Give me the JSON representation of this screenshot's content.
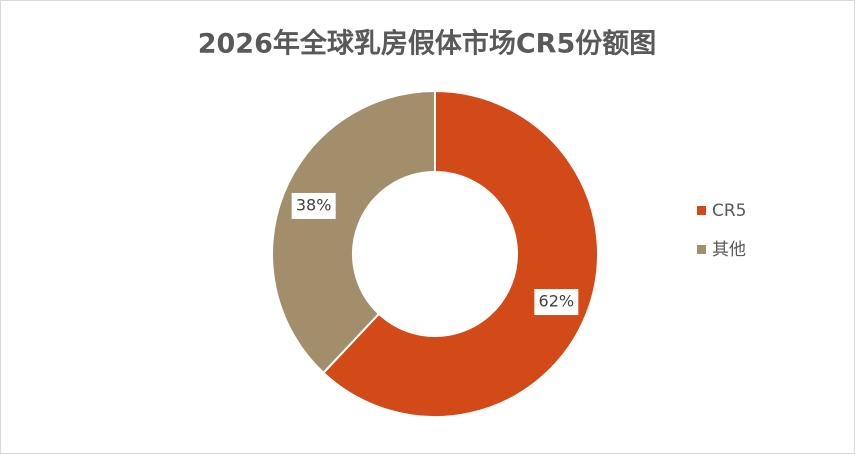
{
  "chart_data": {
    "type": "donut",
    "title": "2026年全球乳房假体市场CR5份额图",
    "categories": [
      "CR5",
      "其他"
    ],
    "values": [
      62,
      38
    ],
    "value_labels": [
      "62%",
      "38%"
    ],
    "colors": [
      "#d24a17",
      "#a38e6b"
    ],
    "legend": "right"
  }
}
